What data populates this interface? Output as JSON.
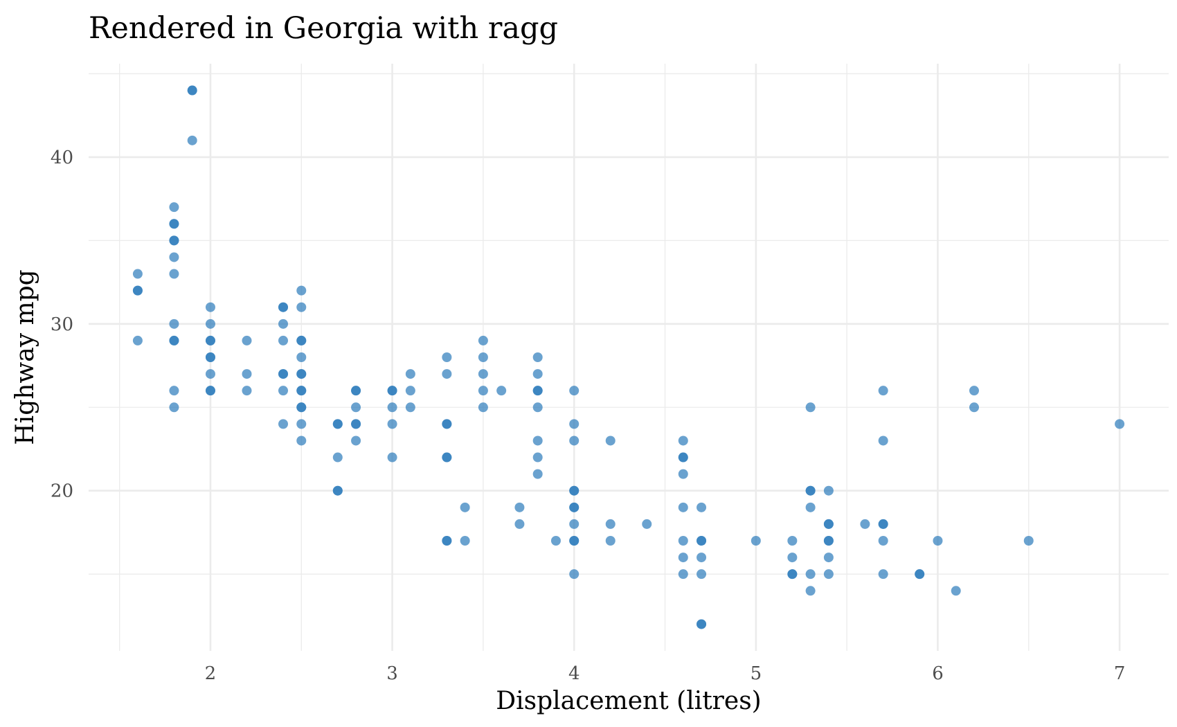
{
  "chart_data": {
    "type": "scatter",
    "title": "Rendered in Georgia with ragg",
    "xlabel": "Displacement (litres)",
    "ylabel": "Highway mpg",
    "xlim": [
      1.33,
      7.27
    ],
    "ylim": [
      10.4,
      45.6
    ],
    "x_major_ticks": [
      2,
      3,
      4,
      5,
      6,
      7
    ],
    "x_tick_labels": [
      "2",
      "3",
      "4",
      "5",
      "6",
      "7"
    ],
    "x_minor_ticks": [
      1.5,
      2.5,
      3.5,
      4.5,
      5.5,
      6.5
    ],
    "y_major_ticks": [
      20,
      30,
      40
    ],
    "y_tick_labels": [
      "20",
      "30",
      "40"
    ],
    "y_minor_ticks": [
      15,
      25,
      35,
      45
    ],
    "grid": true,
    "legend": "none",
    "point_color": "#2b7bba",
    "point_alpha": 0.7,
    "points": [
      [
        1.6,
        33
      ],
      [
        1.6,
        32
      ],
      [
        1.6,
        32
      ],
      [
        1.6,
        29
      ],
      [
        1.8,
        37
      ],
      [
        1.8,
        36
      ],
      [
        1.8,
        36
      ],
      [
        1.8,
        35
      ],
      [
        1.8,
        35
      ],
      [
        1.8,
        34
      ],
      [
        1.8,
        33
      ],
      [
        1.8,
        30
      ],
      [
        1.8,
        29
      ],
      [
        1.8,
        29
      ],
      [
        1.8,
        26
      ],
      [
        1.8,
        25
      ],
      [
        1.9,
        44
      ],
      [
        1.9,
        44
      ],
      [
        1.9,
        41
      ],
      [
        2.0,
        31
      ],
      [
        2.0,
        30
      ],
      [
        2.0,
        29
      ],
      [
        2.0,
        29
      ],
      [
        2.0,
        28
      ],
      [
        2.0,
        28
      ],
      [
        2.0,
        27
      ],
      [
        2.0,
        26
      ],
      [
        2.0,
        26
      ],
      [
        2.2,
        29
      ],
      [
        2.2,
        27
      ],
      [
        2.2,
        26
      ],
      [
        2.4,
        31
      ],
      [
        2.4,
        31
      ],
      [
        2.4,
        30
      ],
      [
        2.4,
        29
      ],
      [
        2.4,
        27
      ],
      [
        2.4,
        27
      ],
      [
        2.4,
        26
      ],
      [
        2.4,
        24
      ],
      [
        2.5,
        32
      ],
      [
        2.5,
        31
      ],
      [
        2.5,
        29
      ],
      [
        2.5,
        29
      ],
      [
        2.5,
        28
      ],
      [
        2.5,
        27
      ],
      [
        2.5,
        27
      ],
      [
        2.5,
        26
      ],
      [
        2.5,
        26
      ],
      [
        2.5,
        25
      ],
      [
        2.5,
        25
      ],
      [
        2.5,
        24
      ],
      [
        2.5,
        23
      ],
      [
        2.7,
        24
      ],
      [
        2.7,
        24
      ],
      [
        2.7,
        22
      ],
      [
        2.7,
        20
      ],
      [
        2.7,
        20
      ],
      [
        2.8,
        26
      ],
      [
        2.8,
        26
      ],
      [
        2.8,
        25
      ],
      [
        2.8,
        24
      ],
      [
        2.8,
        24
      ],
      [
        2.8,
        23
      ],
      [
        3.0,
        26
      ],
      [
        3.0,
        26
      ],
      [
        3.0,
        25
      ],
      [
        3.0,
        24
      ],
      [
        3.0,
        22
      ],
      [
        3.1,
        27
      ],
      [
        3.1,
        26
      ],
      [
        3.1,
        25
      ],
      [
        3.3,
        28
      ],
      [
        3.3,
        27
      ],
      [
        3.3,
        24
      ],
      [
        3.3,
        24
      ],
      [
        3.3,
        22
      ],
      [
        3.3,
        22
      ],
      [
        3.3,
        17
      ],
      [
        3.3,
        17
      ],
      [
        3.4,
        19
      ],
      [
        3.4,
        17
      ],
      [
        3.5,
        29
      ],
      [
        3.5,
        28
      ],
      [
        3.5,
        27
      ],
      [
        3.5,
        26
      ],
      [
        3.5,
        25
      ],
      [
        3.6,
        26
      ],
      [
        3.7,
        19
      ],
      [
        3.7,
        18
      ],
      [
        3.8,
        28
      ],
      [
        3.8,
        27
      ],
      [
        3.8,
        26
      ],
      [
        3.8,
        26
      ],
      [
        3.8,
        25
      ],
      [
        3.8,
        23
      ],
      [
        3.8,
        22
      ],
      [
        3.8,
        21
      ],
      [
        3.9,
        17
      ],
      [
        4.0,
        26
      ],
      [
        4.0,
        24
      ],
      [
        4.0,
        23
      ],
      [
        4.0,
        20
      ],
      [
        4.0,
        20
      ],
      [
        4.0,
        19
      ],
      [
        4.0,
        19
      ],
      [
        4.0,
        18
      ],
      [
        4.0,
        17
      ],
      [
        4.0,
        17
      ],
      [
        4.0,
        15
      ],
      [
        4.2,
        23
      ],
      [
        4.2,
        18
      ],
      [
        4.2,
        17
      ],
      [
        4.4,
        18
      ],
      [
        4.6,
        23
      ],
      [
        4.6,
        22
      ],
      [
        4.6,
        22
      ],
      [
        4.6,
        21
      ],
      [
        4.6,
        19
      ],
      [
        4.6,
        17
      ],
      [
        4.6,
        16
      ],
      [
        4.6,
        15
      ],
      [
        4.7,
        19
      ],
      [
        4.7,
        17
      ],
      [
        4.7,
        17
      ],
      [
        4.7,
        16
      ],
      [
        4.7,
        15
      ],
      [
        4.7,
        12
      ],
      [
        4.7,
        12
      ],
      [
        5.0,
        17
      ],
      [
        5.2,
        17
      ],
      [
        5.2,
        16
      ],
      [
        5.2,
        15
      ],
      [
        5.2,
        15
      ],
      [
        5.3,
        25
      ],
      [
        5.3,
        20
      ],
      [
        5.3,
        20
      ],
      [
        5.3,
        19
      ],
      [
        5.3,
        15
      ],
      [
        5.3,
        14
      ],
      [
        5.4,
        20
      ],
      [
        5.4,
        18
      ],
      [
        5.4,
        18
      ],
      [
        5.4,
        17
      ],
      [
        5.4,
        17
      ],
      [
        5.4,
        16
      ],
      [
        5.4,
        15
      ],
      [
        5.6,
        18
      ],
      [
        5.7,
        26
      ],
      [
        5.7,
        23
      ],
      [
        5.7,
        18
      ],
      [
        5.7,
        18
      ],
      [
        5.7,
        17
      ],
      [
        5.7,
        15
      ],
      [
        5.9,
        15
      ],
      [
        5.9,
        15
      ],
      [
        6.0,
        17
      ],
      [
        6.1,
        14
      ],
      [
        6.2,
        26
      ],
      [
        6.2,
        25
      ],
      [
        6.5,
        17
      ],
      [
        7.0,
        24
      ]
    ]
  }
}
